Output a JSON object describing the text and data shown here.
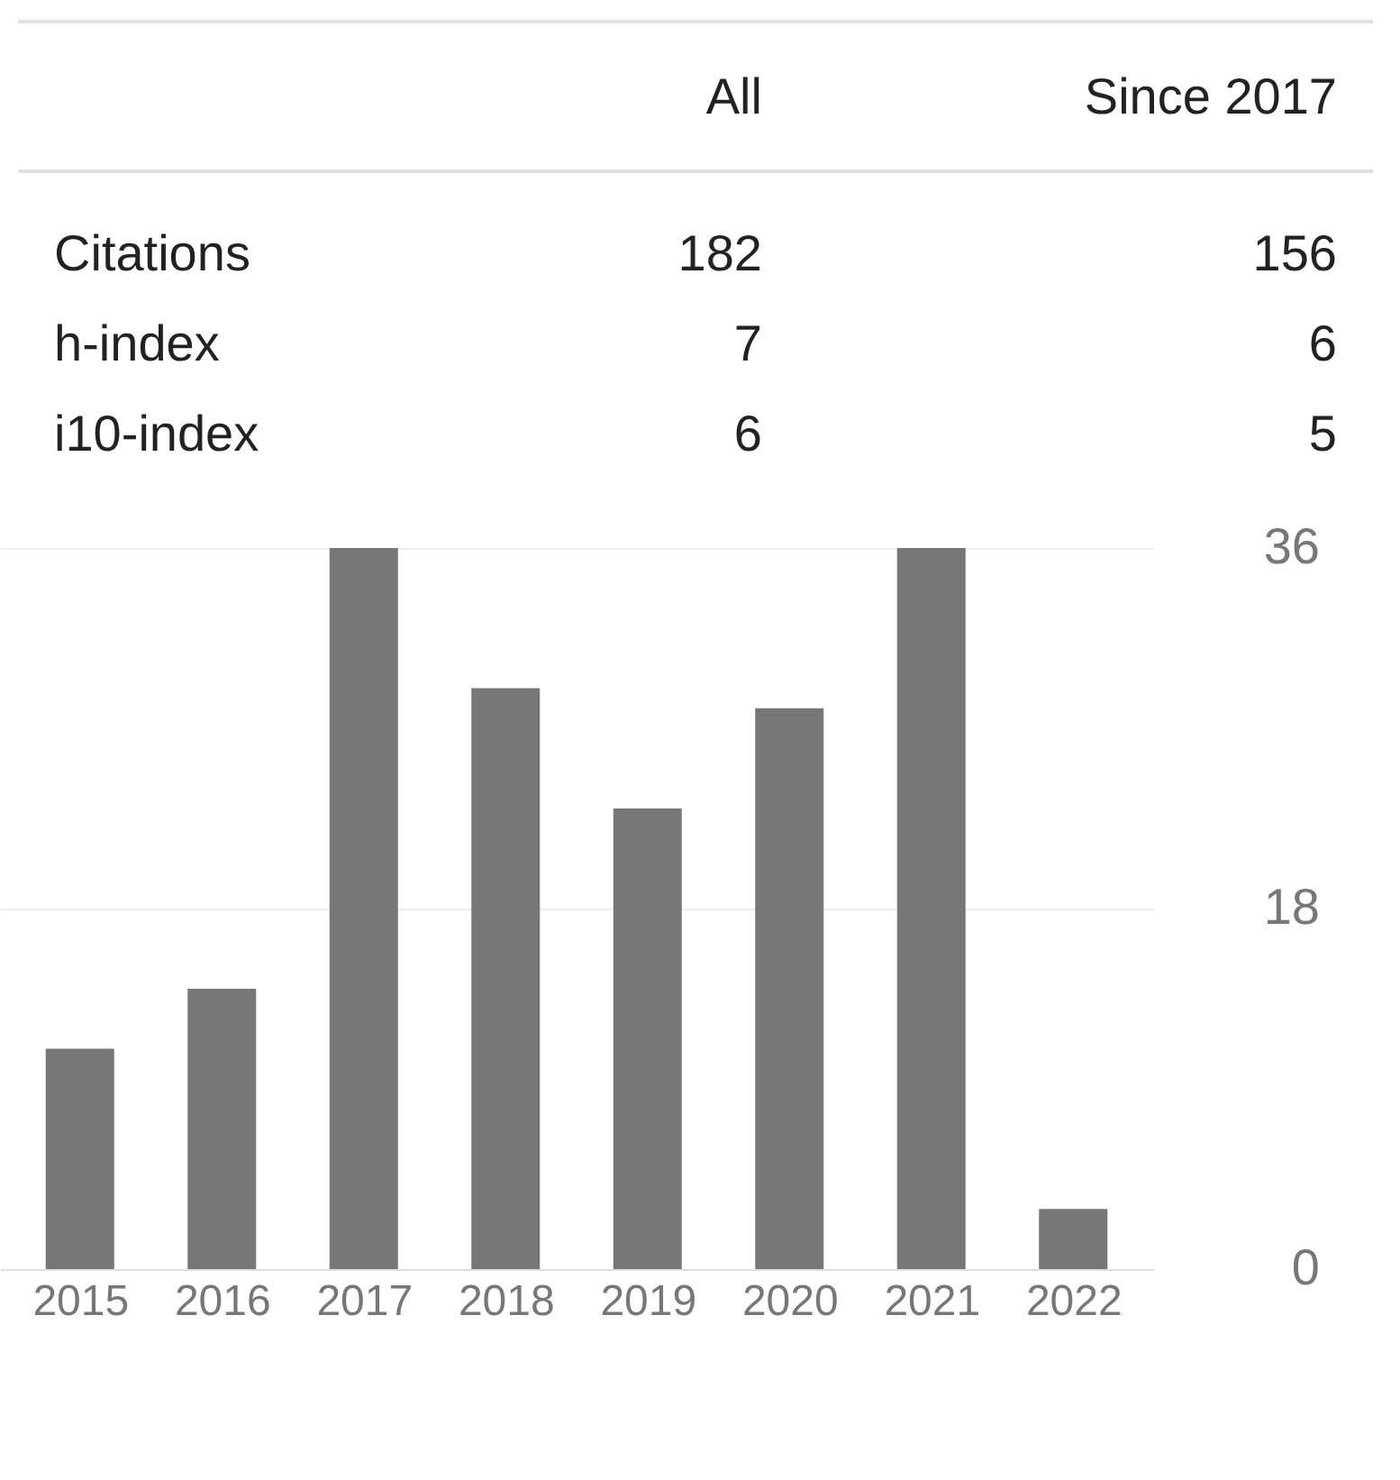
{
  "chart_data": [
    {
      "type": "other",
      "annotations": [
        "All",
        "Since 2017",
        "Citations",
        "182",
        "156",
        "h-index",
        "7",
        "6",
        "i10-index",
        "6",
        "5"
      ]
    },
    {
      "type": "bar",
      "categories": [
        "2015",
        "2016",
        "2017",
        "2018",
        "2019",
        "2020",
        "2021",
        "2022"
      ],
      "values": [
        11,
        14,
        36,
        29,
        23,
        28,
        36,
        3
      ],
      "color": "#777777",
      "ylim": [
        0,
        36
      ],
      "yticks": [
        0,
        18,
        36
      ],
      "grid": "y"
    }
  ]
}
